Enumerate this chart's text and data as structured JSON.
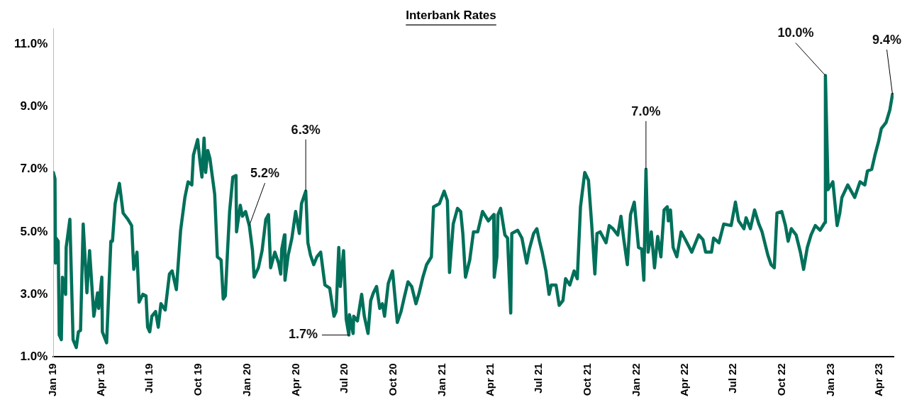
{
  "chart_data": {
    "type": "line",
    "title": "Interbank Rates",
    "x": [
      "2019-01-01",
      "2019-01-04",
      "2019-01-05",
      "2019-01-06",
      "2019-01-10",
      "2019-01-12",
      "2019-01-16",
      "2019-01-18",
      "2019-01-24",
      "2019-01-25",
      "2019-02-01",
      "2019-02-07",
      "2019-02-13",
      "2019-02-17",
      "2019-02-21",
      "2019-02-26",
      "2019-03-05",
      "2019-03-10",
      "2019-03-18",
      "2019-03-25",
      "2019-03-27",
      "2019-04-02",
      "2019-04-03",
      "2019-04-11",
      "2019-04-19",
      "2019-04-22",
      "2019-04-27",
      "2019-05-05",
      "2019-05-12",
      "2019-05-21",
      "2019-05-28",
      "2019-06-01",
      "2019-06-07",
      "2019-06-11",
      "2019-06-18",
      "2019-06-24",
      "2019-06-27",
      "2019-07-01",
      "2019-07-05",
      "2019-07-12",
      "2019-07-17",
      "2019-07-22",
      "2019-07-30",
      "2019-08-07",
      "2019-08-12",
      "2019-08-20",
      "2019-08-28",
      "2019-09-05",
      "2019-09-11",
      "2019-09-18",
      "2019-09-21",
      "2019-09-29",
      "2019-10-03",
      "2019-10-07",
      "2019-10-11",
      "2019-10-14",
      "2019-10-18",
      "2019-10-22",
      "2019-10-31",
      "2019-11-05",
      "2019-11-12",
      "2019-11-16",
      "2019-11-20",
      "2019-11-24",
      "2019-11-28",
      "2019-12-04",
      "2019-12-10",
      "2019-12-11",
      "2019-12-18",
      "2019-12-22",
      "2019-12-28",
      "2020-01-04",
      "2020-01-10",
      "2020-01-13",
      "2020-01-21",
      "2020-01-28",
      "2020-02-04",
      "2020-02-09",
      "2020-02-13",
      "2020-02-21",
      "2020-02-28",
      "2020-03-03",
      "2020-03-05",
      "2020-03-10",
      "2020-03-11",
      "2020-03-17",
      "2020-03-24",
      "2020-03-31",
      "2020-04-07",
      "2020-04-11",
      "2020-04-19",
      "2020-04-23",
      "2020-04-28",
      "2020-05-04",
      "2020-05-10",
      "2020-05-17",
      "2020-05-25",
      "2020-06-03",
      "2020-06-11",
      "2020-06-15",
      "2020-06-20",
      "2020-06-23",
      "2020-06-29",
      "2020-07-04",
      "2020-07-09",
      "2020-07-10",
      "2020-07-17",
      "2020-07-18",
      "2020-07-25",
      "2020-08-02",
      "2020-08-07",
      "2020-08-14",
      "2020-08-19",
      "2020-08-24",
      "2020-08-30",
      "2020-09-05",
      "2020-09-10",
      "2020-09-14",
      "2020-09-21",
      "2020-09-29",
      "2020-10-08",
      "2020-10-15",
      "2020-10-21",
      "2020-10-28",
      "2020-11-04",
      "2020-11-12",
      "2020-11-18",
      "2020-11-25",
      "2020-12-02",
      "2020-12-11",
      "2020-12-15",
      "2020-12-26",
      "2021-01-04",
      "2021-01-10",
      "2021-01-14",
      "2021-01-21",
      "2021-01-29",
      "2021-02-04",
      "2021-02-08",
      "2021-02-13",
      "2021-02-21",
      "2021-02-28",
      "2021-03-08",
      "2021-03-17",
      "2021-03-28",
      "2021-04-07",
      "2021-04-08",
      "2021-04-13",
      "2021-04-15",
      "2021-04-20",
      "2021-04-28",
      "2021-05-03",
      "2021-05-09",
      "2021-05-11",
      "2021-05-22",
      "2021-05-30",
      "2021-06-08",
      "2021-06-13",
      "2021-06-21",
      "2021-06-27",
      "2021-07-02",
      "2021-07-07",
      "2021-07-14",
      "2021-07-20",
      "2021-07-24",
      "2021-08-02",
      "2021-08-08",
      "2021-08-15",
      "2021-08-20",
      "2021-08-28",
      "2021-09-05",
      "2021-09-11",
      "2021-09-17",
      "2021-09-25",
      "2021-10-02",
      "2021-10-08",
      "2021-10-14",
      "2021-10-18",
      "2021-10-24",
      "2021-11-04",
      "2021-11-10",
      "2021-11-17",
      "2021-11-26",
      "2021-12-02",
      "2021-12-07",
      "2021-12-14",
      "2021-12-20",
      "2021-12-27",
      "2022-01-04",
      "2022-01-10",
      "2022-01-14",
      "2022-01-18",
      "2022-01-22",
      "2022-01-28",
      "2022-02-03",
      "2022-02-09",
      "2022-02-15",
      "2022-02-21",
      "2022-02-27",
      "2022-03-01",
      "2022-03-05",
      "2022-03-10",
      "2022-03-17",
      "2022-03-25",
      "2022-04-02",
      "2022-04-14",
      "2022-04-27",
      "2022-05-05",
      "2022-05-10",
      "2022-05-21",
      "2022-05-25",
      "2022-06-04",
      "2022-06-13",
      "2022-06-27",
      "2022-07-05",
      "2022-07-11",
      "2022-07-21",
      "2022-07-25",
      "2022-08-02",
      "2022-08-10",
      "2022-08-18",
      "2022-08-24",
      "2022-09-04",
      "2022-09-10",
      "2022-09-16",
      "2022-09-21",
      "2022-09-30",
      "2022-10-07",
      "2022-10-12",
      "2022-10-18",
      "2022-10-27",
      "2022-11-04",
      "2022-11-10",
      "2022-11-17",
      "2022-11-24",
      "2022-12-02",
      "2022-12-11",
      "2022-12-20",
      "2022-12-21",
      "2022-12-26",
      "2023-01-04",
      "2023-01-12",
      "2023-01-17",
      "2023-01-21",
      "2023-02-01",
      "2023-02-14",
      "2023-02-24",
      "2023-03-05",
      "2023-03-10",
      "2023-03-18",
      "2023-03-24",
      "2023-03-31",
      "2023-04-05",
      "2023-04-14",
      "2023-04-21",
      "2023-04-26"
    ],
    "series": [
      {
        "color": "#00705a",
        "values": [
          6.9,
          6.7,
          4.0,
          4.8,
          4.7,
          1.7,
          1.55,
          3.55,
          3.0,
          4.5,
          5.4,
          1.55,
          1.3,
          1.8,
          1.85,
          5.25,
          3.05,
          4.4,
          2.3,
          3.05,
          2.55,
          3.55,
          1.8,
          1.45,
          4.7,
          4.7,
          5.9,
          6.55,
          5.6,
          5.4,
          5.2,
          3.8,
          4.35,
          2.75,
          3.0,
          2.95,
          1.95,
          1.8,
          2.3,
          2.45,
          1.95,
          2.7,
          2.5,
          3.65,
          3.75,
          3.15,
          5.05,
          6.1,
          6.6,
          6.5,
          7.45,
          7.95,
          7.3,
          6.75,
          8.0,
          6.9,
          7.6,
          7.35,
          6.2,
          4.2,
          4.1,
          2.85,
          2.95,
          4.35,
          5.65,
          6.75,
          6.8,
          5.0,
          5.85,
          5.5,
          5.65,
          5.2,
          4.4,
          3.55,
          3.85,
          4.4,
          5.4,
          5.55,
          3.85,
          4.35,
          4.0,
          3.65,
          4.45,
          4.9,
          3.45,
          4.25,
          4.8,
          5.65,
          4.95,
          5.9,
          6.3,
          4.65,
          4.25,
          3.95,
          4.2,
          4.35,
          3.3,
          3.2,
          2.3,
          2.45,
          4.5,
          3.25,
          4.4,
          2.2,
          1.7,
          2.35,
          1.75,
          2.3,
          2.15,
          3.0,
          2.3,
          1.75,
          2.8,
          3.05,
          3.25,
          2.55,
          2.7,
          2.3,
          3.35,
          3.75,
          2.1,
          2.45,
          2.9,
          3.4,
          3.25,
          2.7,
          3.05,
          3.55,
          3.95,
          4.2,
          5.8,
          5.9,
          6.3,
          6.0,
          3.7,
          5.25,
          5.75,
          5.65,
          4.95,
          3.55,
          4.1,
          5.0,
          5.0,
          5.65,
          5.35,
          5.55,
          3.55,
          4.2,
          5.55,
          5.75,
          4.9,
          4.8,
          2.4,
          4.95,
          5.05,
          4.8,
          4.0,
          4.45,
          4.95,
          5.1,
          4.7,
          4.35,
          3.75,
          3.0,
          3.3,
          3.3,
          2.65,
          2.8,
          3.5,
          3.3,
          3.75,
          3.5,
          5.8,
          6.9,
          6.65,
          5.25,
          3.65,
          4.95,
          5.0,
          4.65,
          5.2,
          5.1,
          4.9,
          5.5,
          4.8,
          3.95,
          5.55,
          5.95,
          4.5,
          4.45,
          3.45,
          7.0,
          4.35,
          5.0,
          3.85,
          4.85,
          4.2,
          5.7,
          5.8,
          5.35,
          5.7,
          4.5,
          4.2,
          5.0,
          4.75,
          4.35,
          4.9,
          4.75,
          4.35,
          4.35,
          4.8,
          4.65,
          5.25,
          5.2,
          5.95,
          5.35,
          5.1,
          5.45,
          5.1,
          5.7,
          5.25,
          5.0,
          4.25,
          3.95,
          3.85,
          5.6,
          5.65,
          5.2,
          4.7,
          5.1,
          4.9,
          4.35,
          3.8,
          4.5,
          4.9,
          5.2,
          5.05,
          5.3,
          10.0,
          6.35,
          6.6,
          5.2,
          5.6,
          6.1,
          6.5,
          6.1,
          6.6,
          6.5,
          6.95,
          7.0,
          7.45,
          7.9,
          8.3,
          8.5,
          8.9,
          9.4
        ]
      }
    ],
    "xlim": [
      "2019-01-01",
      "2023-04-28"
    ],
    "xticks": [
      {
        "value": "2019-01-01",
        "label": "Jan 19"
      },
      {
        "value": "2019-04-01",
        "label": "Apr 19"
      },
      {
        "value": "2019-07-01",
        "label": "Jul 19"
      },
      {
        "value": "2019-10-01",
        "label": "Oct 19"
      },
      {
        "value": "2020-01-01",
        "label": "Jan 20"
      },
      {
        "value": "2020-04-01",
        "label": "Apr 20"
      },
      {
        "value": "2020-07-01",
        "label": "Jul 20"
      },
      {
        "value": "2020-10-01",
        "label": "Oct 20"
      },
      {
        "value": "2021-01-01",
        "label": "Jan 21"
      },
      {
        "value": "2021-04-01",
        "label": "Apr 21"
      },
      {
        "value": "2021-07-01",
        "label": "Jul 21"
      },
      {
        "value": "2021-10-01",
        "label": "Oct 21"
      },
      {
        "value": "2022-01-01",
        "label": "Jan 22"
      },
      {
        "value": "2022-04-01",
        "label": "Apr 22"
      },
      {
        "value": "2022-07-01",
        "label": "Jul 22"
      },
      {
        "value": "2022-10-01",
        "label": "Oct 22"
      },
      {
        "value": "2023-01-01",
        "label": "Jan 23"
      },
      {
        "value": "2023-04-01",
        "label": "Apr 23"
      }
    ],
    "ylim": [
      1,
      11.5
    ],
    "yticks": [
      {
        "value": 1,
        "label": "1.0%"
      },
      {
        "value": 3,
        "label": "3.0%"
      },
      {
        "value": 5,
        "label": "5.0%"
      },
      {
        "value": 7,
        "label": "7.0%"
      },
      {
        "value": 9,
        "label": "9.0%"
      },
      {
        "value": 11,
        "label": "11.0%"
      }
    ],
    "annotations": [
      {
        "text": "5.2%",
        "x": "2020-01-04",
        "y": 5.2
      },
      {
        "text": "6.3%",
        "x": "2020-04-19",
        "y": 6.3
      },
      {
        "text": "1.7%",
        "x": "2020-07-09",
        "y": 1.7
      },
      {
        "text": "7.0%",
        "x": "2022-01-18",
        "y": 7.0
      },
      {
        "text": "10.0%",
        "x": "2022-12-21",
        "y": 10.0
      },
      {
        "text": "9.4%",
        "x": "2023-04-26",
        "y": 9.4
      }
    ],
    "grid": false,
    "legend": false,
    "marker": "none",
    "line_style": "solid"
  }
}
